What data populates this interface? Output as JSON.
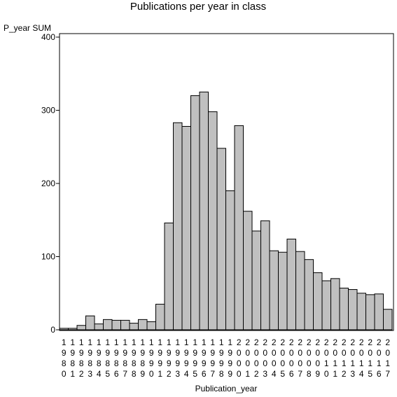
{
  "chart_data": {
    "type": "bar",
    "title": "Publications per year in class",
    "xlabel": "Publication_year",
    "ylabel": "P_year SUM",
    "ylim": [
      0,
      400
    ],
    "yticks": [
      0,
      100,
      200,
      300,
      400
    ],
    "grid": false,
    "bar_fill": "#c0c0c0",
    "bar_stroke": "#000000",
    "categories": [
      "1980",
      "1981",
      "1982",
      "1983",
      "1984",
      "1985",
      "1986",
      "1987",
      "1988",
      "1989",
      "1990",
      "1991",
      "1992",
      "1993",
      "1994",
      "1995",
      "1996",
      "1997",
      "1998",
      "1999",
      "2000",
      "2001",
      "2002",
      "2003",
      "2004",
      "2005",
      "2006",
      "2007",
      "2008",
      "2009",
      "2010",
      "2011",
      "2012",
      "2013",
      "2014",
      "2015",
      "2016",
      "2017"
    ],
    "values": [
      2,
      2,
      6,
      19,
      8,
      14,
      13,
      13,
      9,
      14,
      11,
      35,
      146,
      283,
      278,
      320,
      325,
      298,
      248,
      190,
      279,
      162,
      135,
      149,
      108,
      106,
      124,
      107,
      96,
      78,
      67,
      70,
      57,
      55,
      50,
      48,
      49,
      28
    ]
  }
}
